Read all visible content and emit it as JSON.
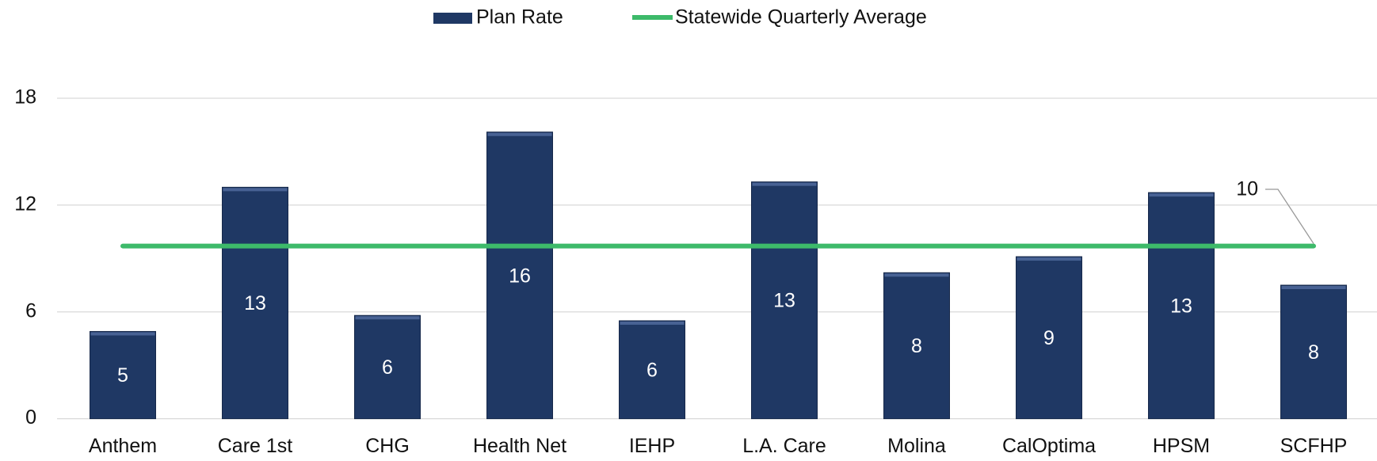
{
  "chart_data": {
    "type": "bar",
    "categories": [
      "Anthem",
      "Care 1st",
      "CHG",
      "Health Net",
      "IEHP",
      "L.A. Care",
      "Molina",
      "CalOptima",
      "HPSM",
      "SCFHP"
    ],
    "series": [
      {
        "name": "Plan Rate",
        "color": "#1f3864",
        "values": [
          4.9,
          13.0,
          5.8,
          16.1,
          5.5,
          13.3,
          8.2,
          9.1,
          12.7,
          7.5
        ],
        "value_labels": [
          "5",
          "13",
          "6",
          "16",
          "6",
          "13",
          "8",
          "9",
          "13",
          "8"
        ]
      }
    ],
    "average": {
      "name": "Statewide Quarterly Average",
      "color": "#3dba6a",
      "value": 9.7,
      "value_label": "10"
    },
    "ylim": [
      0,
      18
    ],
    "yticks": [
      0,
      6,
      12,
      18
    ],
    "grid": true,
    "legend": "top"
  }
}
